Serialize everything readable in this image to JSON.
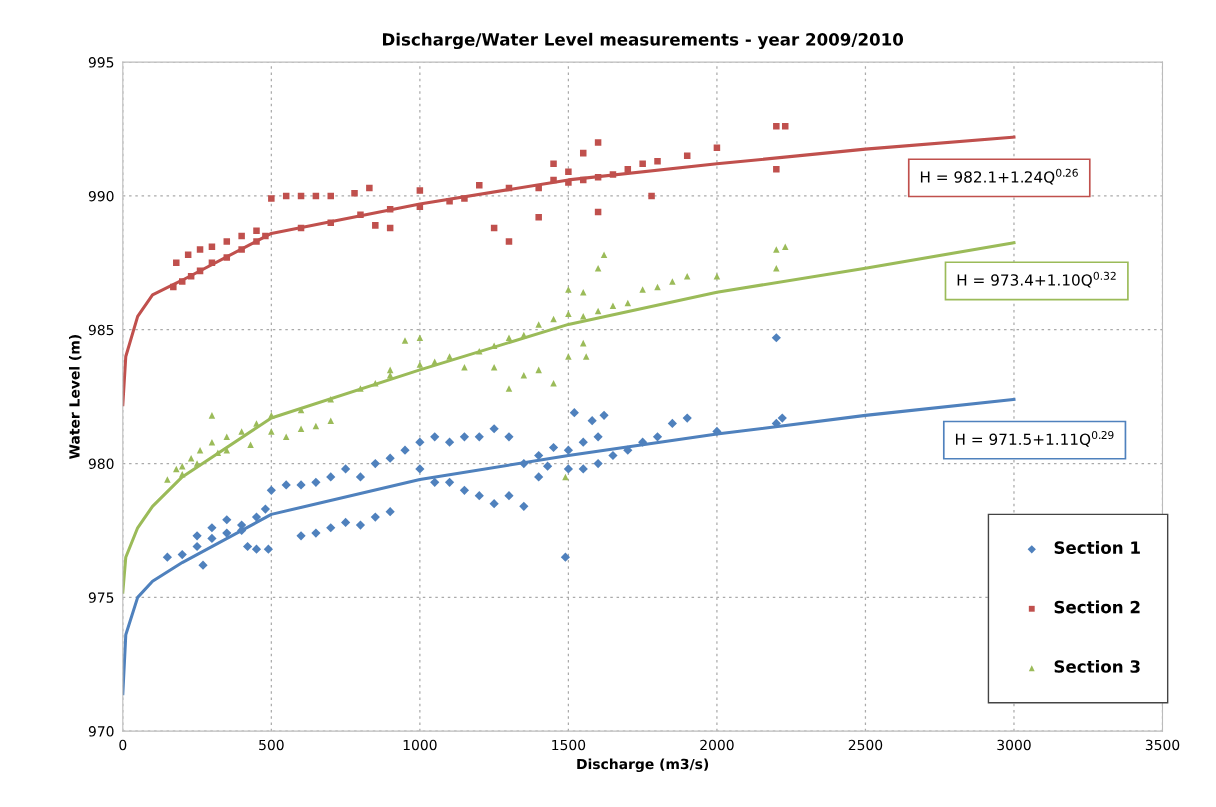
{
  "chart_data": {
    "type": "scatter",
    "title": "Discharge/Water Level measurements - year 2009/2010",
    "xlabel": "Discharge (m3/s)",
    "ylabel": "Water Level (m)",
    "xlim": [
      0,
      3500
    ],
    "ylim": [
      970,
      995
    ],
    "xticks": [
      0,
      500,
      1000,
      1500,
      2000,
      2500,
      3000,
      3500
    ],
    "yticks": [
      970,
      975,
      980,
      985,
      990,
      995
    ],
    "grid": true,
    "legend": "bottom right",
    "series": [
      {
        "name": "Section 1",
        "color": "#4f81bd",
        "marker": "diamond",
        "x": [
          150,
          200,
          250,
          300,
          350,
          400,
          450,
          480,
          250,
          300,
          350,
          400,
          420,
          450,
          490,
          270,
          500,
          550,
          600,
          650,
          700,
          750,
          600,
          650,
          700,
          750,
          800,
          850,
          900,
          800,
          850,
          900,
          950,
          1000,
          1050,
          1100,
          1150,
          1200,
          1250,
          1300,
          1000,
          1050,
          1100,
          1150,
          1200,
          1250,
          1300,
          1350,
          1400,
          1400,
          1450,
          1500,
          1550,
          1600,
          1520,
          1580,
          1620,
          1500,
          1550,
          1600,
          1650,
          1700,
          1750,
          1800,
          1850,
          1900,
          2000,
          2200,
          2220,
          1490,
          2200,
          1430,
          1350
        ],
        "values": [
          976.5,
          976.6,
          976.9,
          977.2,
          977.4,
          977.7,
          978.0,
          978.3,
          977.3,
          977.6,
          977.9,
          977.5,
          976.9,
          976.8,
          976.8,
          976.2,
          979.0,
          979.2,
          979.2,
          979.3,
          979.5,
          979.8,
          977.3,
          977.4,
          977.6,
          977.8,
          977.7,
          978.0,
          978.2,
          979.5,
          980.0,
          980.2,
          980.5,
          980.8,
          981.0,
          980.8,
          981.0,
          981.0,
          981.3,
          981.0,
          979.8,
          979.3,
          979.3,
          979.0,
          978.8,
          978.5,
          978.8,
          978.4,
          979.5,
          980.3,
          980.6,
          980.5,
          980.8,
          981.0,
          981.9,
          981.6,
          981.8,
          979.8,
          979.8,
          980.0,
          980.3,
          980.5,
          980.8,
          981.0,
          981.5,
          981.7,
          981.2,
          981.5,
          981.7,
          976.5,
          984.7,
          979.9,
          980.0
        ]
      },
      {
        "name": "Section 2",
        "color": "#c0504d",
        "marker": "square",
        "x": [
          170,
          200,
          230,
          260,
          300,
          350,
          400,
          450,
          480,
          180,
          220,
          260,
          300,
          350,
          400,
          450,
          500,
          550,
          600,
          650,
          700,
          780,
          830,
          600,
          700,
          800,
          900,
          1000,
          1100,
          1150,
          1000,
          1200,
          1300,
          1400,
          1450,
          1500,
          1550,
          1600,
          1650,
          1700,
          1750,
          1800,
          1900,
          2000,
          2200,
          2230,
          2200,
          1250,
          1300,
          1500,
          1550,
          1600,
          1450,
          1400,
          1780,
          1600,
          850,
          900
        ],
        "values": [
          986.6,
          986.8,
          987.0,
          987.2,
          987.5,
          987.7,
          988.0,
          988.3,
          988.5,
          987.5,
          987.8,
          988.0,
          988.1,
          988.3,
          988.5,
          988.7,
          989.9,
          990.0,
          990.0,
          990.0,
          990.0,
          990.1,
          990.3,
          988.8,
          989.0,
          989.3,
          989.5,
          989.6,
          989.8,
          989.9,
          990.2,
          990.4,
          990.3,
          990.3,
          990.6,
          990.5,
          990.6,
          990.7,
          990.8,
          991.0,
          991.2,
          991.3,
          991.5,
          991.8,
          992.6,
          992.6,
          991.0,
          988.8,
          988.3,
          990.9,
          991.6,
          992.0,
          991.2,
          989.2,
          990.0,
          989.4,
          988.9,
          988.8
        ]
      },
      {
        "name": "Section 3",
        "color": "#9bbb59",
        "marker": "triangle",
        "x": [
          150,
          180,
          200,
          230,
          260,
          300,
          320,
          350,
          400,
          450,
          500,
          300,
          200,
          250,
          350,
          430,
          500,
          550,
          600,
          650,
          700,
          600,
          700,
          800,
          850,
          900,
          950,
          1000,
          900,
          1000,
          1050,
          1100,
          1150,
          1200,
          1250,
          1300,
          1350,
          1400,
          1450,
          1500,
          1550,
          1600,
          1650,
          1500,
          1550,
          1600,
          1620,
          1700,
          1750,
          1800,
          1850,
          1900,
          2000,
          2200,
          2200,
          2230,
          1300,
          1250,
          1350,
          1400,
          1500,
          1450,
          1490,
          1550,
          1560
        ],
        "values": [
          979.4,
          979.8,
          979.6,
          980.2,
          980.5,
          980.8,
          980.4,
          981.0,
          981.2,
          981.5,
          981.8,
          981.8,
          979.9,
          980.0,
          980.5,
          980.7,
          981.2,
          981.0,
          981.3,
          981.4,
          981.6,
          982.0,
          982.4,
          982.8,
          983.0,
          983.3,
          984.6,
          984.7,
          983.5,
          983.7,
          983.8,
          984.0,
          983.6,
          984.2,
          984.4,
          984.7,
          984.8,
          985.2,
          985.4,
          985.6,
          985.5,
          985.7,
          985.9,
          986.5,
          986.4,
          987.3,
          987.8,
          986.0,
          986.5,
          986.6,
          986.8,
          987.0,
          987.0,
          987.3,
          988.0,
          988.1,
          982.8,
          983.6,
          983.3,
          983.5,
          984.0,
          983.0,
          979.5,
          984.5,
          984.0
        ]
      },
      {
        "type": "line",
        "color": "#c0504d",
        "x": [
          0,
          10,
          50,
          100,
          200,
          500,
          1000,
          1500,
          2000,
          2500,
          3000
        ],
        "values": [
          982.2,
          984.0,
          985.5,
          986.3,
          986.85,
          988.6,
          989.7,
          990.6,
          991.2,
          991.75,
          992.2
        ]
      },
      {
        "type": "line",
        "color": "#9bbb59",
        "x": [
          0,
          10,
          50,
          100,
          200,
          500,
          1000,
          1500,
          2000,
          2500,
          3000
        ],
        "values": [
          975.2,
          976.5,
          977.6,
          978.4,
          979.5,
          981.7,
          983.5,
          985.2,
          986.4,
          987.3,
          988.25
        ]
      },
      {
        "type": "line",
        "color": "#4f81bd",
        "x": [
          0,
          10,
          50,
          100,
          200,
          500,
          1000,
          1500,
          2000,
          2500,
          3000
        ],
        "values": [
          971.4,
          973.6,
          975.0,
          975.6,
          976.3,
          978.1,
          979.4,
          980.3,
          981.1,
          981.8,
          982.4
        ]
      }
    ],
    "annotations": [
      "H = 982.1+1.24Q$^{0.26}$",
      "H = 973.4+1.10Q$^{0.32}$",
      "H = 971.5+1.11Q$^{0.29}$"
    ]
  }
}
